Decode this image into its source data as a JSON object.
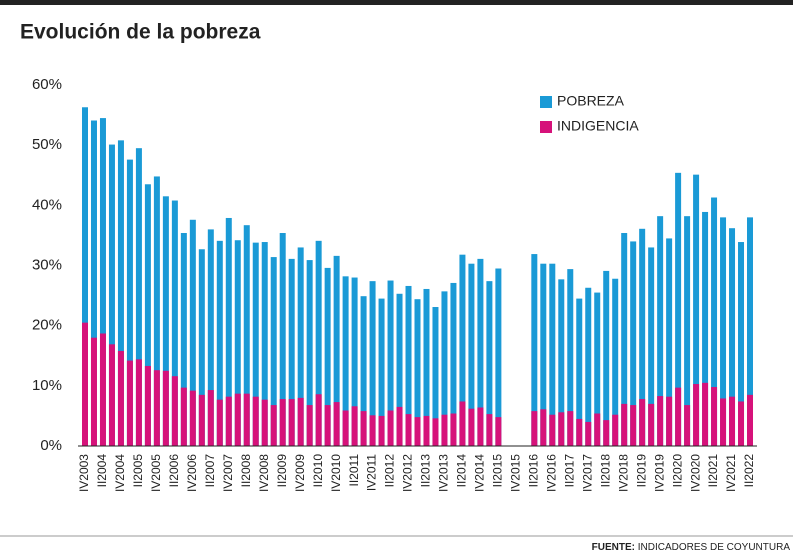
{
  "chart_data": {
    "type": "bar",
    "title": "Evolución de la pobreza",
    "categories": [
      "IV2003",
      null,
      "II2004",
      null,
      "IV2004",
      null,
      "II2005",
      null,
      "IV2005",
      null,
      "II2006",
      null,
      "IV2006",
      null,
      "II2007",
      null,
      "IV2007",
      null,
      "II2008",
      null,
      "IV2008",
      null,
      "II2009",
      null,
      "IV2009",
      null,
      "II2010",
      null,
      "IV2010",
      null,
      "II2011",
      null,
      "IV2011",
      null,
      "II2012",
      null,
      "IV2012",
      null,
      "II2013",
      null,
      "IV2013",
      null,
      "II2014",
      null,
      "IV2014",
      null,
      "II2015",
      null,
      "IV2015",
      null,
      "II2016",
      null,
      "IV2016",
      null,
      "II2017",
      null,
      "IV2017",
      null,
      "II2018",
      null,
      "IV2018",
      null,
      "II2019",
      null,
      "IV2019",
      null,
      "II2020",
      null,
      "IV2020",
      null,
      "II2021",
      null,
      "IV2021",
      null,
      "II2022"
    ],
    "series": [
      {
        "name": "POBREZA",
        "color": "#1a9ad6",
        "values": [
          56.3,
          54.1,
          54.5,
          50.1,
          50.8,
          47.6,
          49.5,
          43.5,
          44.8,
          41.5,
          40.8,
          35.4,
          37.6,
          32.7,
          36.0,
          34.1,
          37.9,
          34.2,
          36.7,
          33.8,
          33.9,
          31.4,
          35.4,
          31.1,
          33.0,
          30.9,
          34.1,
          29.6,
          31.6,
          28.2,
          28.0,
          24.9,
          27.4,
          24.5,
          27.5,
          25.3,
          26.6,
          24.4,
          26.1,
          23.1,
          25.7,
          27.1,
          31.8,
          30.3,
          31.1,
          27.4,
          29.5,
          null,
          null,
          null,
          31.9,
          30.3,
          30.3,
          27.7,
          29.4,
          24.5,
          26.3,
          25.5,
          29.1,
          27.8,
          35.4,
          34.0,
          36.1,
          33.0,
          38.2,
          34.5,
          45.4,
          38.2,
          45.1,
          38.9,
          41.3,
          38.0,
          36.2,
          33.9,
          38.0
        ]
      },
      {
        "name": "INDIGENCIA",
        "color": "#d6127a",
        "values": [
          20.5,
          18.0,
          18.7,
          16.9,
          15.8,
          14.2,
          14.4,
          13.3,
          12.6,
          12.5,
          11.6,
          9.7,
          9.2,
          8.5,
          9.3,
          7.7,
          8.2,
          8.7,
          8.7,
          8.2,
          7.7,
          6.8,
          7.8,
          7.8,
          8.0,
          6.8,
          8.6,
          6.8,
          7.3,
          5.9,
          6.6,
          5.8,
          5.1,
          5.0,
          5.9,
          6.5,
          5.3,
          4.8,
          5.0,
          4.6,
          5.2,
          5.4,
          7.4,
          6.2,
          6.4,
          5.3,
          4.8,
          null,
          null,
          null,
          5.8,
          6.1,
          5.2,
          5.6,
          5.8,
          4.5,
          4.0,
          5.4,
          4.3,
          5.2,
          7.0,
          6.8,
          7.8,
          7.0,
          8.3,
          8.2,
          9.7,
          6.8,
          10.3,
          10.5,
          9.8,
          7.9,
          8.2,
          7.4,
          8.5
        ]
      }
    ],
    "ylim": [
      0,
      60
    ],
    "yticks": [
      {
        "value": 0,
        "label": "0%"
      },
      {
        "value": 10,
        "label": "10%"
      },
      {
        "value": 20,
        "label": "20%"
      },
      {
        "value": 30,
        "label": "30%"
      },
      {
        "value": 40,
        "label": "40%"
      },
      {
        "value": 50,
        "label": "50%"
      },
      {
        "value": 60,
        "label": "60%"
      }
    ],
    "grid": false,
    "legend": "top-right",
    "source_label": "FUENTE:",
    "source": "INDICADORES DE COYUNTURA"
  }
}
